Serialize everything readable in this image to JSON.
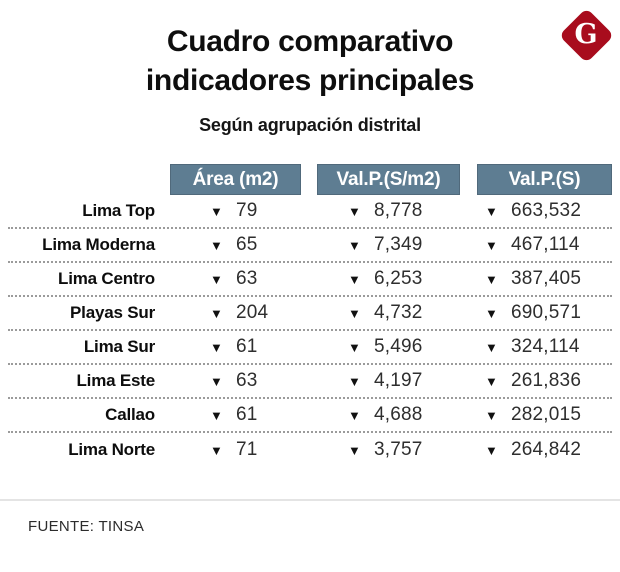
{
  "logo": {
    "letter": "G"
  },
  "colors": {
    "logo_red": "#a80c1d",
    "header_bg": "#5e7d92"
  },
  "header": {
    "title_line1": "Cuadro comparativo",
    "title_line2": "indicadores principales",
    "subtitle": "Según agrupación distrital"
  },
  "icons": {
    "down_arrow": "▼"
  },
  "chart_data": {
    "type": "table",
    "title": "Cuadro comparativo indicadores principales",
    "subtitle": "Según agrupación distrital",
    "columns": [
      "Área (m2)",
      "Val.P.(S/m2)",
      "Val.P.(S)"
    ],
    "trend_all_cells": "down",
    "rows": [
      {
        "label": "Lima Top",
        "values": [
          "79",
          "8,778",
          "663,532"
        ]
      },
      {
        "label": "Lima Moderna",
        "values": [
          "65",
          "7,349",
          "467,114"
        ]
      },
      {
        "label": "Lima Centro",
        "values": [
          "63",
          "6,253",
          "387,405"
        ]
      },
      {
        "label": "Playas Sur",
        "values": [
          "204",
          "4,732",
          "690,571"
        ]
      },
      {
        "label": "Lima Sur",
        "values": [
          "61",
          "5,496",
          "324,114"
        ]
      },
      {
        "label": "Lima Este",
        "values": [
          "63",
          "4,197",
          "261,836"
        ]
      },
      {
        "label": "Callao",
        "values": [
          "61",
          "4,688",
          "282,015"
        ]
      },
      {
        "label": "Lima Norte",
        "values": [
          "71",
          "3,757",
          "264,842"
        ]
      }
    ]
  },
  "footer": {
    "source": "FUENTE: TINSA"
  }
}
